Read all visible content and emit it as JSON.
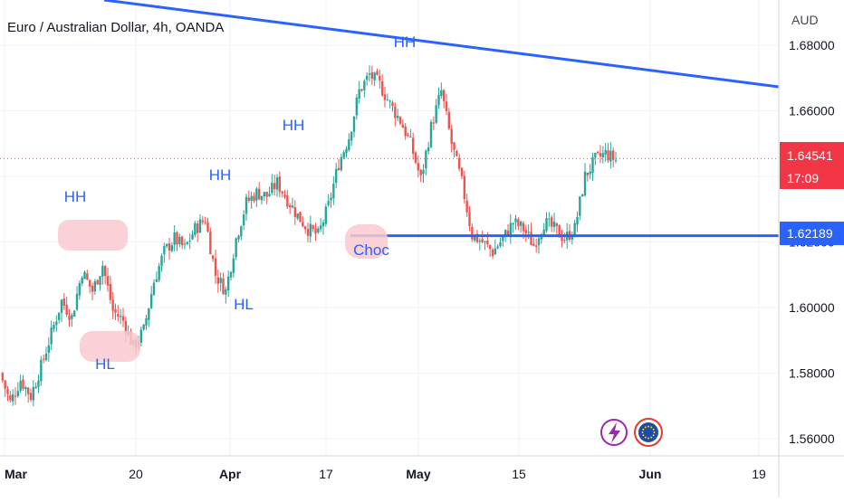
{
  "header": {
    "title": "Euro / Australian Dollar, 4h, OANDA"
  },
  "price_axis": {
    "currency": "AUD",
    "ticks": [
      "1.68000",
      "1.66000",
      "1.64000",
      "1.62000",
      "1.60000",
      "1.58000",
      "1.56000"
    ],
    "last_price_badge": {
      "price": "1.64541",
      "countdown": "17:09",
      "color": "#f23645"
    },
    "level_badge": {
      "price": "1.62189",
      "color": "#2962ff"
    }
  },
  "time_axis": {
    "ticks": [
      "Mar",
      "20",
      "Apr",
      "17",
      "May",
      "15",
      "Jun",
      "19"
    ]
  },
  "annotations": {
    "labels": [
      "HH",
      "HL",
      "HL",
      "HH",
      "HH",
      "HH",
      "Choc"
    ],
    "color": "#2962ff"
  },
  "colors": {
    "up": "#26a69a",
    "down": "#ef5350",
    "line": "#2962ff",
    "highlight": "#f8c9cf",
    "grid": "#f0f3fa"
  },
  "chart_data": {
    "type": "candlestick",
    "title": "Euro / Australian Dollar, 4h, OANDA",
    "ylabel": "AUD",
    "ylim": [
      1.555,
      1.683
    ],
    "x_ticks": [
      "Mar",
      "20",
      "Apr",
      "17",
      "May",
      "15",
      "Jun",
      "19"
    ],
    "y_ticks": [
      1.56,
      1.58,
      1.6,
      1.62,
      1.64,
      1.66,
      1.68
    ],
    "last_price": 1.64541,
    "horizontal_level": 1.62189,
    "close_path": [
      [
        0,
        1.58
      ],
      [
        1,
        1.571
      ],
      [
        2,
        1.578
      ],
      [
        3,
        1.573
      ],
      [
        4,
        1.582
      ],
      [
        5,
        1.592
      ],
      [
        6,
        1.602
      ],
      [
        7,
        1.597
      ],
      [
        8,
        1.611
      ],
      [
        9,
        1.605
      ],
      [
        10,
        1.613
      ],
      [
        11,
        1.599
      ],
      [
        12,
        1.596
      ],
      [
        13,
        1.588
      ],
      [
        14,
        1.593
      ],
      [
        15,
        1.608
      ],
      [
        16,
        1.617
      ],
      [
        17,
        1.621
      ],
      [
        18,
        1.618
      ],
      [
        19,
        1.624
      ],
      [
        20,
        1.627
      ],
      [
        21,
        1.61
      ],
      [
        22,
        1.605
      ],
      [
        23,
        1.621
      ],
      [
        24,
        1.632
      ],
      [
        25,
        1.635
      ],
      [
        26,
        1.634
      ],
      [
        27,
        1.638
      ],
      [
        28,
        1.633
      ],
      [
        29,
        1.628
      ],
      [
        30,
        1.624
      ],
      [
        31,
        1.622
      ],
      [
        32,
        1.631
      ],
      [
        33,
        1.644
      ],
      [
        34,
        1.652
      ],
      [
        35,
        1.666
      ],
      [
        36,
        1.671
      ],
      [
        37,
        1.668
      ],
      [
        38,
        1.662
      ],
      [
        39,
        1.657
      ],
      [
        40,
        1.65
      ],
      [
        41,
        1.639
      ],
      [
        42,
        1.655
      ],
      [
        43,
        1.666
      ],
      [
        44,
        1.65
      ],
      [
        45,
        1.638
      ],
      [
        46,
        1.622
      ],
      [
        47,
        1.62
      ],
      [
        48,
        1.617
      ],
      [
        49,
        1.621
      ],
      [
        50,
        1.626
      ],
      [
        51,
        1.624
      ],
      [
        52,
        1.619
      ],
      [
        53,
        1.626
      ],
      [
        54,
        1.624
      ],
      [
        55,
        1.621
      ],
      [
        56,
        1.624
      ],
      [
        57,
        1.64
      ],
      [
        58,
        1.645
      ],
      [
        59,
        1.647
      ],
      [
        60,
        1.645
      ]
    ],
    "annotations": [
      {
        "label": "HH",
        "x": 7.5,
        "y": 1.631,
        "highlight": true
      },
      {
        "label": "HL",
        "x": 11.0,
        "y": 1.577,
        "highlight": true
      },
      {
        "label": "HL",
        "x": 24.5,
        "y": 1.6
      },
      {
        "label": "HH",
        "x": 22.5,
        "y": 1.636
      },
      {
        "label": "HH",
        "x": 29.5,
        "y": 1.654
      },
      {
        "label": "HH",
        "x": 41.0,
        "y": 1.673
      },
      {
        "label": "Choc",
        "x": 38.0,
        "y": 1.618,
        "highlight": true
      }
    ],
    "trendline": {
      "from": [
        0,
        1.684
      ],
      "to": [
        60,
        1.66
      ]
    },
    "grid": true
  },
  "footer_icons": [
    "lightning-icon",
    "eu-flag-icon"
  ]
}
